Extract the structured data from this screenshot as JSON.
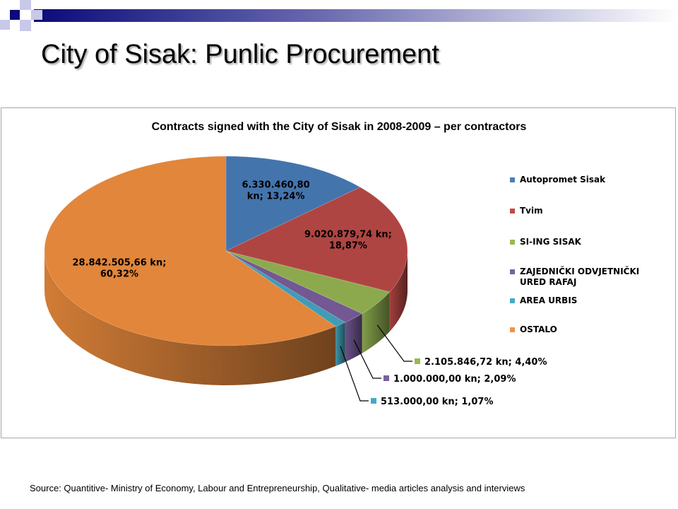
{
  "slide": {
    "title": "City of Sisak: Punlic Procurement",
    "source": "Source: Quantitive- Ministry of Economy, Labour and Entrepreneurship, Qualitative- media articles analysis and interviews"
  },
  "chart_data": {
    "type": "pie",
    "title": "Contracts signed with the City of Sisak in 2008-2009 – per contractors",
    "legend_position": "right",
    "slices": [
      {
        "name": "Autopromet Sisak",
        "value": 6330460.8,
        "percent": 13.24,
        "label": "6.330.460,80 kn; 13,24%",
        "color": "#4a7ebb"
      },
      {
        "name": "Tvim",
        "value": 9020879.74,
        "percent": 18.87,
        "label": "9.020.879,74 kn; 18,87%",
        "color": "#be4b48"
      },
      {
        "name": "SI-ING SISAK",
        "value": 2105846.72,
        "percent": 4.4,
        "label": "2.105.846,72 kn; 4,40%",
        "color": "#98b954"
      },
      {
        "name": "ZAJEDNIČKI ODVJETNIČKI URED RAFAJ",
        "value": 1000000.0,
        "percent": 2.09,
        "label": "1.000.000,00 kn; 2,09%",
        "color": "#7d60a0"
      },
      {
        "name": "AREA URBIS",
        "value": 513000.0,
        "percent": 1.07,
        "label": "513.000,00 kn; 1,07%",
        "color": "#46aac5"
      },
      {
        "name": "OSTALO",
        "value": 28842505.66,
        "percent": 60.32,
        "label": "28.842.505,66 kn; 60,32%",
        "color": "#f69240"
      }
    ]
  }
}
